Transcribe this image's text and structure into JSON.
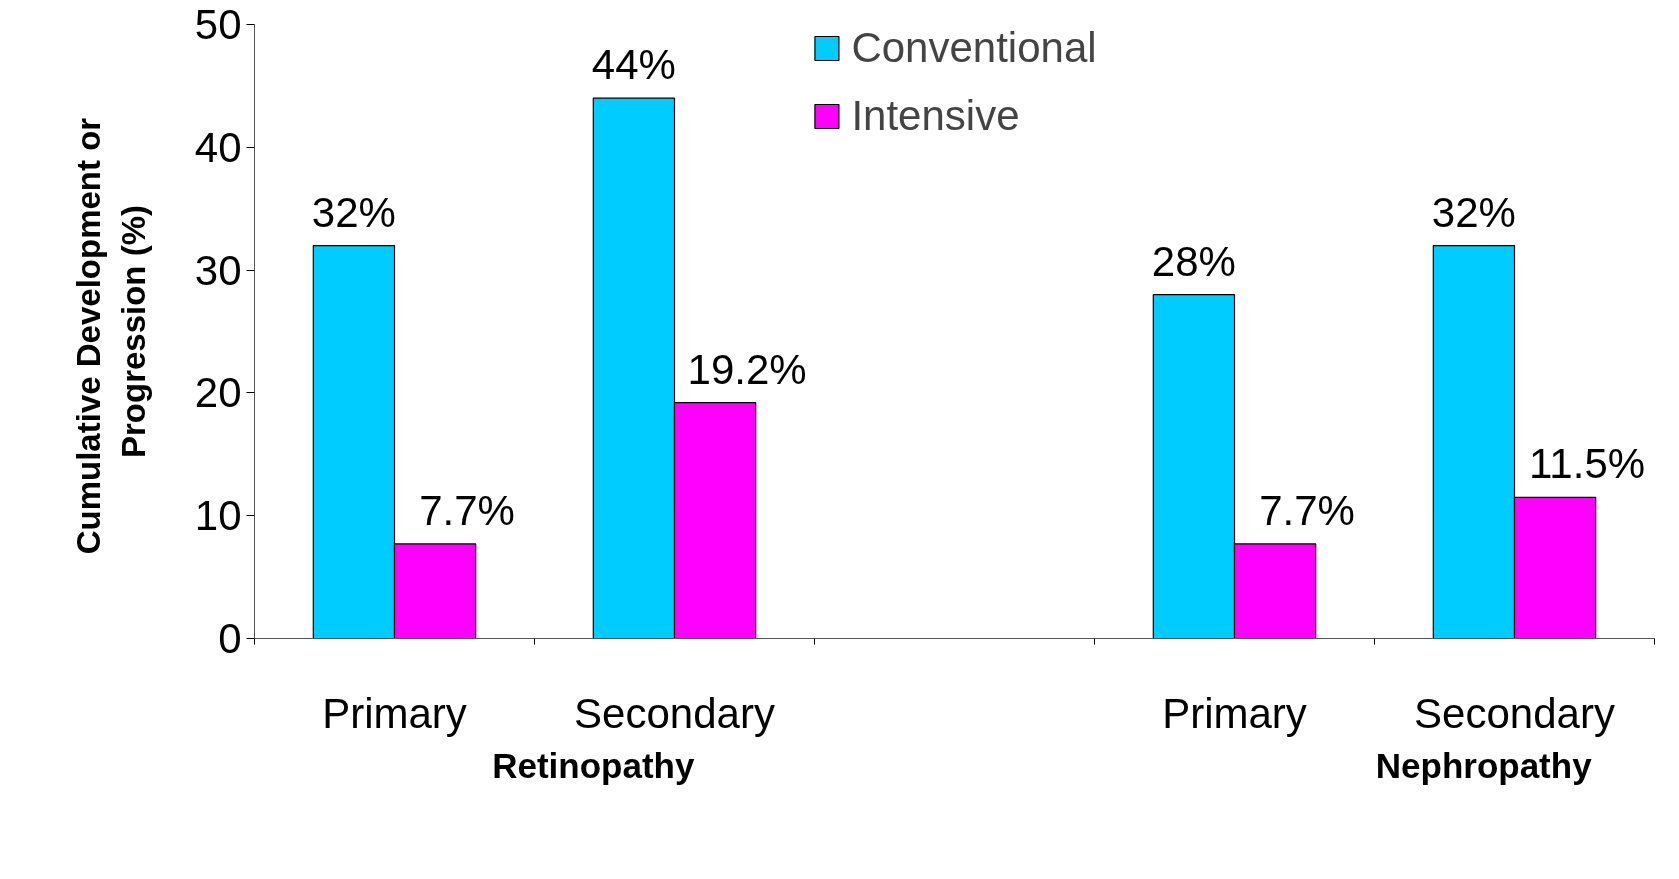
{
  "chart_data": {
    "type": "bar",
    "ylabel": "Cumulative  Development or\nProgression (%)",
    "categories": [
      "Primary",
      "Secondary",
      null,
      "Primary",
      "Secondary"
    ],
    "series": [
      {
        "name": "Conventional",
        "color": "#00ccff",
        "values": [
          32,
          44,
          null,
          28,
          32
        ],
        "value_labels": [
          "32%",
          "44%",
          null,
          "28%",
          "32%"
        ]
      },
      {
        "name": "Intensive",
        "color": "#ff00ff",
        "values": [
          7.7,
          19.2,
          null,
          7.7,
          11.5
        ],
        "value_labels": [
          "7.7%",
          "19.2%",
          null,
          "7.7%",
          "11.5%"
        ]
      }
    ],
    "ylim": [
      0,
      50
    ],
    "yticks": [
      0,
      10,
      20,
      30,
      40,
      50
    ],
    "grid": false,
    "legend": "top",
    "annotations": [
      "Retinopathy",
      "Nephropathy"
    ]
  }
}
